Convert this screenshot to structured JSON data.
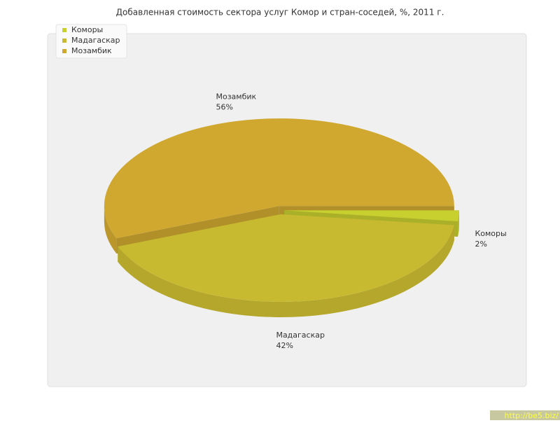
{
  "chart_data": {
    "type": "pie",
    "title": "Добавленная стоимость сектора услуг Комор и стран-соседей, %, 2011 г.",
    "categories": [
      "Коморы",
      "Мадагаскар",
      "Мозамбик"
    ],
    "values": [
      2,
      42,
      56
    ],
    "value_labels": [
      "2%",
      "42%",
      "56%"
    ],
    "colors": [
      "#c8d030",
      "#c8ba30",
      "#d0a830"
    ],
    "legend": "top-left",
    "watermark": "http://be5.biz/"
  }
}
